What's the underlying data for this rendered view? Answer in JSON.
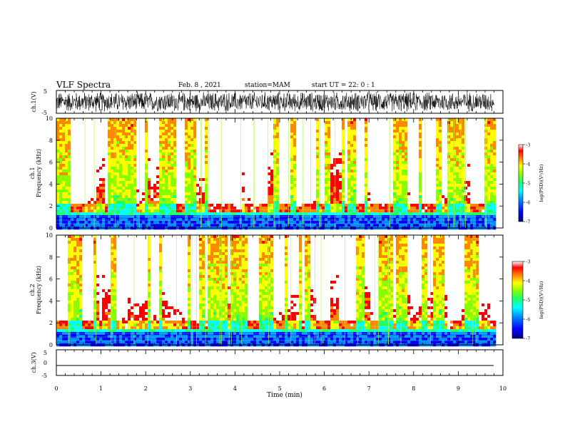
{
  "header": {
    "title": "VLF Spectra",
    "date": "Feb. 8  , 2021",
    "station": "station=MAM",
    "start": "start  UT =   22: 0  : 1"
  },
  "chart_data": [
    {
      "type": "line",
      "panel": "ch1-waveform",
      "ylabel": "ch.1(V)",
      "ylim": [
        -5,
        5
      ],
      "yticks": [
        "5",
        "-5"
      ],
      "xlim": [
        0,
        10
      ],
      "trace": "dense oscillating waveform (amplitude ~ ±4 V) from t=0 to 9.8 min"
    },
    {
      "type": "heatmap",
      "panel": "ch1-spectrogram",
      "ylabel_top": "ch.1",
      "ylabel": "Frequency (kHz)",
      "ylim": [
        0,
        10
      ],
      "yticks": [
        "0",
        "2",
        "4",
        "6",
        "8",
        "10"
      ],
      "xlim": [
        0,
        10
      ],
      "data_extent_min": 9.8,
      "colorbar": {
        "label": "log(PSD)(V²/Hz)",
        "range": [
          -7,
          -3
        ],
        "ticks": [
          "-3",
          "-4",
          "-5",
          "-6",
          "-7"
        ]
      }
    },
    {
      "type": "heatmap",
      "panel": "ch2-spectrogram",
      "ylabel_top": "ch.2",
      "ylabel": "Frequency (kHz)",
      "ylim": [
        0,
        10
      ],
      "yticks": [
        "0",
        "2",
        "4",
        "6",
        "8",
        "10"
      ],
      "xlim": [
        0,
        10
      ],
      "data_extent_min": 9.8,
      "colorbar": {
        "label": "log(PSD)(V²/Hz)",
        "range": [
          -7,
          -3
        ],
        "ticks": [
          "-3",
          "-4",
          "-5",
          "-6",
          "-7"
        ]
      }
    },
    {
      "type": "line",
      "panel": "ch3-waveform",
      "ylabel": "ch.3(V)",
      "ylim": [
        -5,
        5
      ],
      "yticks": [
        "5",
        "0",
        "-5"
      ],
      "xlim": [
        0,
        10
      ],
      "trace": "flat line near -1.5 V"
    }
  ],
  "xaxis": {
    "label": "Time (min)",
    "ticks": [
      "0",
      "1",
      "2",
      "3",
      "4",
      "5",
      "6",
      "7",
      "8",
      "9",
      "10"
    ]
  },
  "colors": {
    "ink": "#000000",
    "colormap": [
      "#00007a",
      "#0000ff",
      "#0088ff",
      "#00ffff",
      "#22ff66",
      "#88ff00",
      "#ffff00",
      "#ff8800",
      "#ff0000",
      "#ffffff"
    ]
  }
}
